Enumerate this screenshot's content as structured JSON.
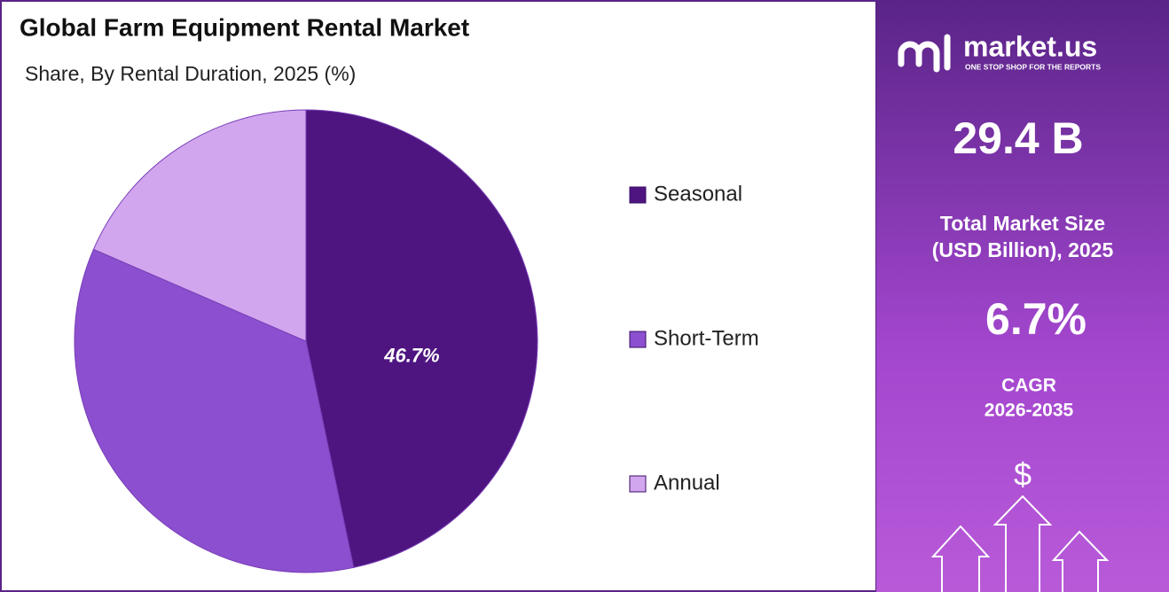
{
  "chart_data": {
    "type": "pie",
    "title": "Global Farm Equipment Rental Market",
    "subtitle": "Share, By Rental Duration, 2025 (%)",
    "categories": [
      "Seasonal",
      "Short-Term",
      "Annual"
    ],
    "values": [
      46.7,
      34.8,
      18.5
    ],
    "value_labels": [
      "46.7%",
      null,
      null
    ],
    "colors": [
      "#4e1580",
      "#8b4fcf",
      "#d1a6ee"
    ]
  },
  "panel": {
    "brand": "market.us",
    "tagline": "ONE STOP SHOP FOR THE REPORTS",
    "market_size": "29.4 B",
    "market_size_label": [
      "Total Market Size",
      "(USD Billion), 2025"
    ],
    "cagr": "6.7%",
    "cagr_label": [
      "CAGR",
      "2026-2035"
    ],
    "currency_icon": "$"
  }
}
